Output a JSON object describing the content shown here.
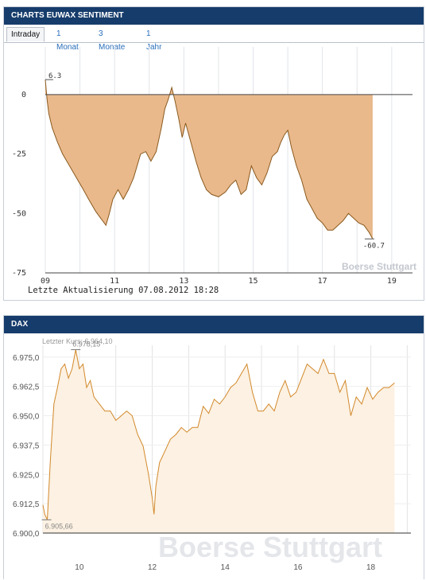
{
  "panel_sentiment": {
    "title": "CHARTS EUWAX SENTIMENT",
    "tabs": [
      {
        "label": "Intraday",
        "active": true
      },
      {
        "label": "1 Monat",
        "active": false
      },
      {
        "label": "3 Monate",
        "active": false
      },
      {
        "label": "1 Jahr",
        "active": false
      }
    ],
    "update_label": "Letzte Aktualisierung 07.08.2012 18:28",
    "watermark": "Boerse Stuttgart"
  },
  "panel_dax": {
    "title": "DAX",
    "last_price_label": "Letzter Kurs: 6.964,10",
    "watermark": "Boerse Stuttgart"
  },
  "colors": {
    "header_bg": "#163c6b",
    "sentiment_fill": "#e9b98c",
    "sentiment_line": "#8a5a1e",
    "dax_line": "#d2882a",
    "dax_fill": "#fcf1e2"
  },
  "chart_data": [
    {
      "type": "area",
      "title": "",
      "xlabel": "",
      "ylabel": "",
      "x_tick_labels": [
        "09",
        "11",
        "13",
        "15",
        "17",
        "19"
      ],
      "y_tick_labels": [
        "0",
        "-25",
        "-50",
        "-75"
      ],
      "xlim": [
        9,
        19.6
      ],
      "ylim": [
        -75,
        10
      ],
      "annotations": [
        {
          "text": "6.3",
          "x": 9.0,
          "y": 6.3
        },
        {
          "text": "-60.7",
          "x": 18.45,
          "y": -60.7
        }
      ],
      "series": [
        {
          "x": [
            9.0,
            9.05,
            9.1,
            9.2,
            9.35,
            9.5,
            9.7,
            9.9,
            10.1,
            10.25,
            10.45,
            10.6,
            10.75,
            10.85,
            10.95,
            11.1,
            11.25,
            11.4,
            11.55,
            11.65,
            11.75,
            11.9,
            12.05,
            12.2,
            12.35,
            12.45,
            12.55,
            12.65,
            12.75,
            12.85,
            12.95,
            13.05,
            13.2,
            13.35,
            13.5,
            13.65,
            13.8,
            14.0,
            14.2,
            14.35,
            14.5,
            14.65,
            14.8,
            14.95,
            15.1,
            15.25,
            15.4,
            15.55,
            15.7,
            15.8,
            15.9,
            16.0,
            16.1,
            16.25,
            16.4,
            16.55,
            16.7,
            16.85,
            17.0,
            17.15,
            17.3,
            17.45,
            17.6,
            17.75,
            17.9,
            18.05,
            18.2,
            18.35,
            18.45
          ],
          "y": [
            6.3,
            -2,
            -8,
            -14,
            -20,
            -25,
            -30,
            -35,
            -40,
            -44,
            -49,
            -52,
            -55,
            -50,
            -44,
            -40,
            -44,
            -40,
            -35,
            -30,
            -25,
            -24,
            -28,
            -24,
            -14,
            -6,
            -2,
            3,
            -3,
            -10,
            -18,
            -12,
            -20,
            -28,
            -35,
            -40,
            -42,
            -43,
            -41,
            -38,
            -36,
            -42,
            -40,
            -30,
            -35,
            -38,
            -33,
            -26,
            -24,
            -20,
            -17,
            -15,
            -22,
            -30,
            -36,
            -44,
            -48,
            -52,
            -54,
            -57,
            -57,
            -55,
            -53,
            -50,
            -52,
            -54,
            -55,
            -58,
            -60.7
          ]
        }
      ]
    },
    {
      "type": "line",
      "title": "",
      "xlabel": "",
      "ylabel": "",
      "x_tick_labels": [
        "10",
        "12",
        "14",
        "16",
        "18"
      ],
      "y_tick_labels": [
        "6.975,0",
        "6.962,5",
        "6.950,0",
        "6.937,5",
        "6.925,0",
        "6.912,5",
        "6.900,0"
      ],
      "xlim": [
        9,
        19.1
      ],
      "ylim": [
        6900,
        6980
      ],
      "annotations": [
        {
          "text": "6.978,15",
          "x": 9.9,
          "y": 6978.15
        },
        {
          "text": "6.905,66",
          "x": 9.1,
          "y": 6905.66
        }
      ],
      "series": [
        {
          "x": [
            9.0,
            9.05,
            9.12,
            9.2,
            9.3,
            9.4,
            9.5,
            9.6,
            9.7,
            9.8,
            9.9,
            10.0,
            10.1,
            10.2,
            10.3,
            10.4,
            10.55,
            10.7,
            10.85,
            11.0,
            11.15,
            11.3,
            11.45,
            11.6,
            11.75,
            11.9,
            12.0,
            12.05,
            12.1,
            12.2,
            12.35,
            12.5,
            12.65,
            12.8,
            12.95,
            13.1,
            13.25,
            13.4,
            13.55,
            13.7,
            13.85,
            14.0,
            14.15,
            14.3,
            14.45,
            14.6,
            14.75,
            14.9,
            15.05,
            15.2,
            15.35,
            15.5,
            15.65,
            15.8,
            15.95,
            16.1,
            16.25,
            16.4,
            16.55,
            16.7,
            16.85,
            17.0,
            17.15,
            17.3,
            17.45,
            17.6,
            17.75,
            17.9,
            18.05,
            18.2,
            18.35,
            18.5,
            18.65
          ],
          "y": [
            6912,
            6908,
            6905.66,
            6930,
            6955,
            6962,
            6970,
            6972,
            6966,
            6970,
            6978.15,
            6970,
            6972,
            6962,
            6965,
            6958,
            6955,
            6952,
            6952,
            6948,
            6950,
            6952,
            6950,
            6942,
            6937,
            6925,
            6915,
            6908,
            6920,
            6930,
            6935,
            6940,
            6942,
            6945,
            6943,
            6945,
            6945,
            6954,
            6951,
            6957,
            6955,
            6958,
            6962,
            6964,
            6968,
            6972,
            6960,
            6952,
            6952,
            6955,
            6952,
            6960,
            6965,
            6958,
            6960,
            6966,
            6972,
            6970,
            6968,
            6974,
            6968,
            6968,
            6960,
            6965,
            6950,
            6958,
            6955,
            6962,
            6957,
            6960,
            6962,
            6962,
            6964
          ]
        }
      ]
    }
  ]
}
